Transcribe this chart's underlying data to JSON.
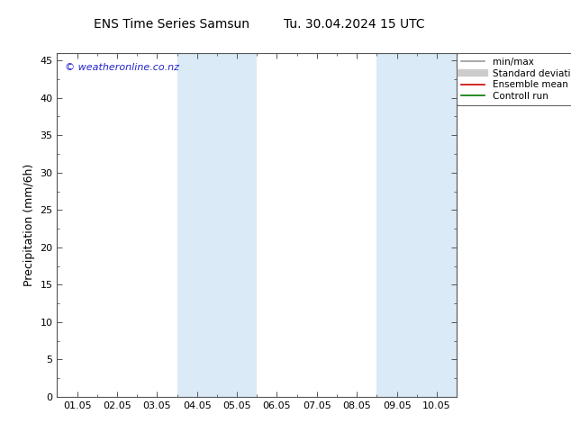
{
  "title_left": "ENS Time Series Samsun",
  "title_right": "Tu. 30.04.2024 15 UTC",
  "ylabel": "Precipitation (mm/6h)",
  "watermark": "© weatheronline.co.nz",
  "x_tick_labels": [
    "01.05",
    "02.05",
    "03.05",
    "04.05",
    "05.05",
    "06.05",
    "07.05",
    "08.05",
    "09.05",
    "10.05"
  ],
  "ylim": [
    0,
    46
  ],
  "yticks": [
    0,
    5,
    10,
    15,
    20,
    25,
    30,
    35,
    40,
    45
  ],
  "n_ticks": 10,
  "shaded_regions": [
    {
      "xmin": 3,
      "xmax": 4,
      "color": "#daeaf7"
    },
    {
      "xmin": 4,
      "xmax": 5,
      "color": "#daeaf7"
    },
    {
      "xmin": 8,
      "xmax": 9,
      "color": "#daeaf7"
    },
    {
      "xmin": 9,
      "xmax": 10,
      "color": "#daeaf7"
    }
  ],
  "legend_entries": [
    {
      "label": "min/max",
      "color": "#999999",
      "lw": 1.2
    },
    {
      "label": "Standard deviation",
      "color": "#cccccc",
      "lw": 6
    },
    {
      "label": "Ensemble mean run",
      "color": "#cc0000",
      "lw": 1.2
    },
    {
      "label": "Controll run",
      "color": "#007700",
      "lw": 1.2
    }
  ],
  "bg_color": "#ffffff",
  "spine_color": "#555555",
  "title_fontsize": 10,
  "label_fontsize": 9,
  "tick_fontsize": 8,
  "watermark_color": "#2222cc",
  "watermark_fontsize": 8
}
